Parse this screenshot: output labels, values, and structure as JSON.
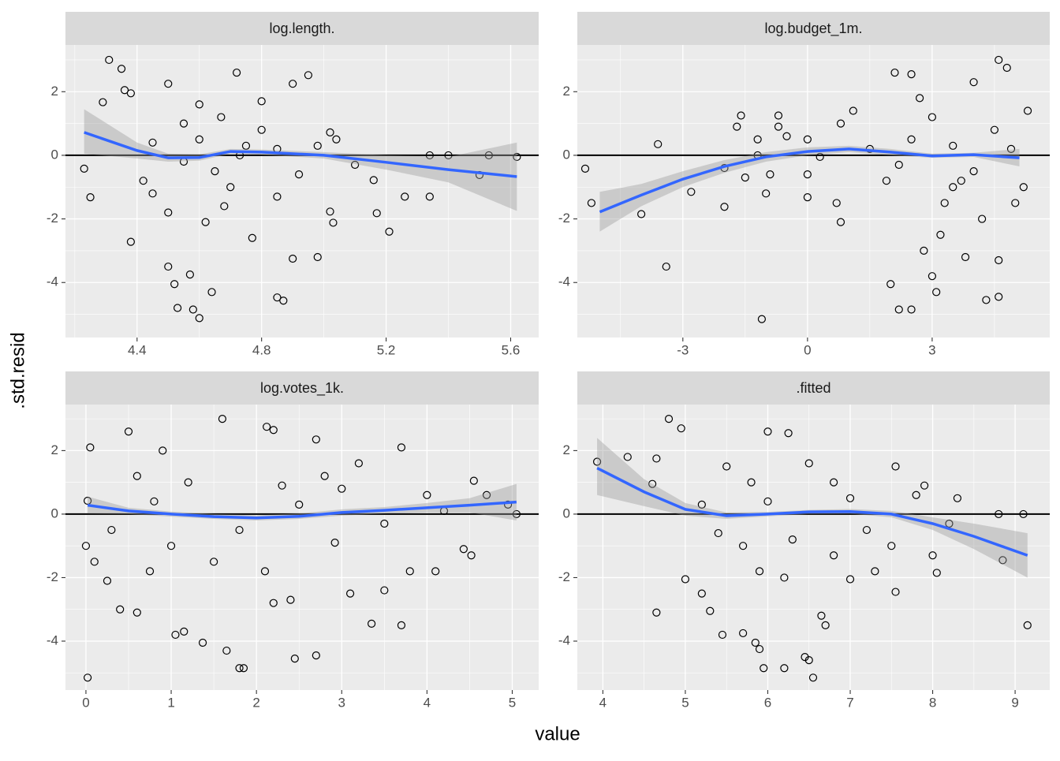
{
  "axis_labels": {
    "x": "value",
    "y": ".std.resid"
  },
  "chart_data": [
    {
      "type": "scatter",
      "title": "log.length.",
      "xlim": [
        4.17,
        5.69
      ],
      "ylim": [
        -5.73,
        3.47
      ],
      "xticks": [
        4.4,
        4.8,
        5.2,
        5.6
      ],
      "yticks": [
        -4,
        -2,
        0,
        2
      ],
      "grid": true,
      "hline": 0,
      "point_color": "#000000",
      "smooth_color": "#3366FF",
      "ribbon_color": "#999999",
      "x": [
        4.23,
        4.25,
        4.31,
        4.29,
        4.35,
        4.36,
        4.38,
        4.38,
        4.45,
        4.5,
        4.52,
        4.53,
        4.6,
        4.58,
        4.57,
        4.64,
        4.72,
        4.85,
        4.87,
        4.9,
        4.98,
        5.02,
        5.03,
        5.17,
        5.21,
        5.26,
        5.34,
        5.34,
        5.4,
        5.5,
        5.53,
        5.62,
        5.16,
        5.1,
        5.02,
        5.04,
        4.95,
        4.9,
        4.8,
        4.5,
        4.55,
        4.6,
        4.65,
        4.7,
        4.75,
        4.45,
        4.55,
        4.6,
        4.68,
        4.77,
        4.85,
        4.92,
        4.8,
        4.62,
        4.5,
        4.42,
        4.73,
        4.85,
        4.98,
        4.67
      ],
      "y": [
        -0.42,
        -1.32,
        3.0,
        1.67,
        2.72,
        2.05,
        1.95,
        -2.72,
        -1.2,
        -3.5,
        -4.05,
        -4.8,
        -5.12,
        -4.85,
        -3.75,
        -4.3,
        2.6,
        -4.47,
        -4.57,
        -3.25,
        -3.2,
        -1.77,
        -2.12,
        -1.82,
        -2.4,
        -1.3,
        -1.3,
        0.0,
        0.0,
        -0.62,
        0.0,
        -0.05,
        -0.78,
        -0.3,
        0.72,
        0.5,
        2.52,
        2.25,
        1.7,
        2.25,
        1.0,
        0.5,
        -0.5,
        -1.0,
        0.3,
        0.4,
        -0.2,
        1.6,
        -1.6,
        -2.6,
        -1.3,
        -0.6,
        0.8,
        -2.1,
        -1.8,
        -0.8,
        0.0,
        0.2,
        0.3,
        1.2
      ],
      "smooth": {
        "x": [
          4.23,
          4.4,
          4.5,
          4.6,
          4.7,
          4.8,
          5.0,
          5.2,
          5.4,
          5.62
        ],
        "y": [
          0.72,
          0.15,
          -0.08,
          -0.07,
          0.12,
          0.1,
          0.0,
          -0.22,
          -0.45,
          -0.67
        ],
        "lo": [
          0.05,
          -0.1,
          -0.2,
          -0.17,
          0.05,
          0.02,
          -0.1,
          -0.45,
          -0.85,
          -1.75
        ],
        "hi": [
          1.45,
          0.4,
          0.05,
          0.03,
          0.2,
          0.18,
          0.1,
          0.0,
          -0.05,
          0.4
        ]
      }
    },
    {
      "type": "scatter",
      "title": "log.budget_1m.",
      "xlim": [
        -5.54,
        5.83
      ],
      "ylim": [
        -5.73,
        3.47
      ],
      "xticks": [
        -3,
        0,
        3
      ],
      "yticks": [
        -4,
        -2,
        0,
        2
      ],
      "grid": true,
      "hline": 0,
      "point_color": "#000000",
      "smooth_color": "#3366FF",
      "ribbon_color": "#999999",
      "x": [
        -5.35,
        -5.2,
        -4.0,
        -3.6,
        -3.4,
        -2.8,
        -2.0,
        -2.0,
        -1.7,
        -1.6,
        -1.5,
        -1.2,
        -1.1,
        -1.2,
        -1.0,
        -0.9,
        -0.7,
        -0.7,
        -0.5,
        0.0,
        0.0,
        0.0,
        0.3,
        0.7,
        0.8,
        0.8,
        1.1,
        1.5,
        1.9,
        2.1,
        2.0,
        2.2,
        2.5,
        2.5,
        2.8,
        3.0,
        3.1,
        3.2,
        3.5,
        3.8,
        4.0,
        4.3,
        4.6,
        4.6,
        4.8,
        4.6,
        5.0,
        5.3,
        5.2,
        2.5,
        3.0,
        3.5,
        4.0,
        4.5,
        2.2,
        3.3,
        4.2,
        2.7,
        3.7,
        4.9
      ],
      "y": [
        -0.42,
        -1.5,
        -1.85,
        0.35,
        -3.5,
        -1.15,
        -1.62,
        -0.4,
        0.9,
        1.25,
        -0.7,
        0.5,
        -5.15,
        0.0,
        -1.2,
        -0.6,
        1.25,
        0.9,
        0.6,
        0.5,
        -1.32,
        -0.6,
        -0.05,
        -1.5,
        -2.1,
        1.0,
        1.4,
        0.2,
        -0.8,
        2.6,
        -4.05,
        -4.85,
        -4.85,
        2.55,
        -3.0,
        -3.8,
        -4.3,
        -2.5,
        -1.0,
        -3.2,
        2.3,
        -4.55,
        -4.45,
        3.0,
        2.75,
        -3.3,
        -1.5,
        1.4,
        -1.0,
        0.5,
        1.2,
        0.3,
        -0.5,
        0.8,
        -0.3,
        -1.5,
        -2.0,
        1.8,
        -0.8,
        0.2
      ],
      "smooth": {
        "x": [
          -5.0,
          -4.0,
          -3.0,
          -2.0,
          -1.0,
          0.0,
          1.0,
          2.0,
          3.0,
          4.0,
          5.1
        ],
        "y": [
          -1.78,
          -1.25,
          -0.75,
          -0.35,
          -0.05,
          0.12,
          0.2,
          0.1,
          -0.02,
          0.02,
          -0.08
        ],
        "lo": [
          -2.4,
          -1.6,
          -1.0,
          -0.55,
          -0.2,
          0.0,
          0.1,
          0.0,
          -0.08,
          -0.05,
          -0.35
        ],
        "hi": [
          -1.15,
          -0.9,
          -0.5,
          -0.15,
          0.1,
          0.25,
          0.3,
          0.2,
          0.05,
          0.08,
          0.2
        ]
      }
    },
    {
      "type": "scatter",
      "title": "log.votes_1k.",
      "xlim": [
        -0.24,
        5.31
      ],
      "ylim": [
        -5.54,
        3.45
      ],
      "xticks": [
        0,
        1,
        2,
        3,
        4,
        5
      ],
      "yticks": [
        -4,
        -2,
        0,
        2
      ],
      "grid": true,
      "hline": 0,
      "point_color": "#000000",
      "smooth_color": "#3366FF",
      "ribbon_color": "#999999",
      "x": [
        0.02,
        0.0,
        0.02,
        0.05,
        0.1,
        0.25,
        0.4,
        0.5,
        0.6,
        0.75,
        0.9,
        1.05,
        1.15,
        1.37,
        1.6,
        1.65,
        1.8,
        1.85,
        2.12,
        2.2,
        2.2,
        2.4,
        2.45,
        2.7,
        2.7,
        2.92,
        3.1,
        3.35,
        3.5,
        3.7,
        3.7,
        3.8,
        4.1,
        4.43,
        4.52,
        4.55,
        4.7,
        5.05,
        4.95,
        4.0,
        3.2,
        2.5,
        1.8,
        1.2,
        0.8,
        0.3,
        1.5,
        2.8,
        3.5,
        2.1,
        1.0,
        0.6,
        3.0,
        4.2,
        2.3
      ],
      "y": [
        -5.15,
        -1.0,
        0.42,
        2.1,
        -1.5,
        -2.1,
        -3.0,
        2.6,
        -3.1,
        -1.8,
        2.0,
        -3.8,
        -3.7,
        -4.05,
        3.0,
        -4.3,
        -4.85,
        -4.85,
        2.75,
        2.65,
        -2.8,
        -2.7,
        -4.55,
        -4.45,
        2.35,
        -0.9,
        -2.5,
        -3.45,
        -2.4,
        2.1,
        -3.5,
        -1.8,
        -1.8,
        -1.1,
        -1.3,
        1.05,
        0.6,
        0.0,
        0.3,
        0.6,
        1.6,
        0.3,
        -0.5,
        1.0,
        0.4,
        -0.5,
        -1.5,
        1.2,
        -0.3,
        -1.8,
        -1.0,
        1.2,
        0.8,
        0.1,
        0.9
      ],
      "smooth": {
        "x": [
          0.02,
          0.5,
          1.0,
          1.5,
          2.0,
          2.5,
          3.0,
          3.5,
          4.0,
          4.5,
          5.05
        ],
        "y": [
          0.28,
          0.1,
          0.0,
          -0.08,
          -0.12,
          -0.07,
          0.05,
          0.12,
          0.2,
          0.28,
          0.38
        ],
        "lo": [
          0.02,
          0.0,
          -0.08,
          -0.15,
          -0.2,
          -0.15,
          -0.05,
          0.02,
          0.05,
          0.05,
          -0.2
        ],
        "hi": [
          0.55,
          0.2,
          0.08,
          0.0,
          -0.04,
          0.02,
          0.15,
          0.22,
          0.35,
          0.5,
          0.95
        ]
      }
    },
    {
      "type": "scatter",
      "title": ".fitted",
      "xlim": [
        3.69,
        9.42
      ],
      "ylim": [
        -5.54,
        3.45
      ],
      "xticks": [
        4,
        5,
        6,
        7,
        8,
        9
      ],
      "yticks": [
        -4,
        -2,
        0,
        2
      ],
      "grid": true,
      "hline": 0,
      "point_color": "#000000",
      "smooth_color": "#3366FF",
      "ribbon_color": "#999999",
      "x": [
        3.93,
        4.3,
        4.6,
        4.65,
        4.65,
        4.8,
        4.95,
        5.0,
        5.2,
        5.3,
        5.45,
        5.7,
        5.85,
        5.9,
        5.95,
        6.0,
        6.25,
        6.2,
        6.45,
        6.5,
        6.55,
        6.65,
        6.7,
        7.0,
        7.3,
        7.55,
        7.55,
        7.9,
        8.0,
        8.05,
        8.3,
        8.8,
        8.85,
        9.1,
        9.15,
        8.2,
        7.8,
        7.2,
        6.8,
        6.3,
        6.0,
        5.7,
        5.5,
        5.2,
        5.9,
        6.5,
        7.0,
        6.2,
        5.4,
        7.5,
        6.8,
        5.8
      ],
      "y": [
        1.65,
        1.8,
        0.95,
        1.75,
        -3.1,
        3.0,
        2.7,
        -2.05,
        -2.5,
        -3.05,
        -3.8,
        -3.75,
        -4.05,
        -4.25,
        -4.85,
        2.6,
        2.55,
        -4.85,
        -4.5,
        -4.6,
        -5.15,
        -3.2,
        -3.5,
        -2.05,
        -1.8,
        -2.45,
        1.5,
        0.9,
        -1.3,
        -1.85,
        0.5,
        0.0,
        -1.45,
        0.0,
        -3.5,
        -0.3,
        0.6,
        -0.5,
        1.0,
        -0.8,
        0.4,
        -1.0,
        1.5,
        0.3,
        -1.8,
        1.6,
        0.5,
        -2.0,
        -0.6,
        -1.0,
        -1.3,
        1.0
      ],
      "smooth": {
        "x": [
          3.93,
          4.5,
          5.0,
          5.5,
          6.0,
          6.5,
          7.0,
          7.5,
          8.0,
          8.5,
          9.15
        ],
        "y": [
          1.45,
          0.7,
          0.15,
          -0.05,
          0.0,
          0.07,
          0.08,
          0.0,
          -0.3,
          -0.7,
          -1.3
        ],
        "lo": [
          0.6,
          0.25,
          -0.05,
          -0.15,
          -0.07,
          0.0,
          0.01,
          -0.1,
          -0.5,
          -1.1,
          -2.0
        ],
        "hi": [
          2.4,
          1.1,
          0.35,
          0.05,
          0.07,
          0.13,
          0.16,
          0.1,
          -0.1,
          -0.3,
          -0.6
        ]
      }
    }
  ]
}
